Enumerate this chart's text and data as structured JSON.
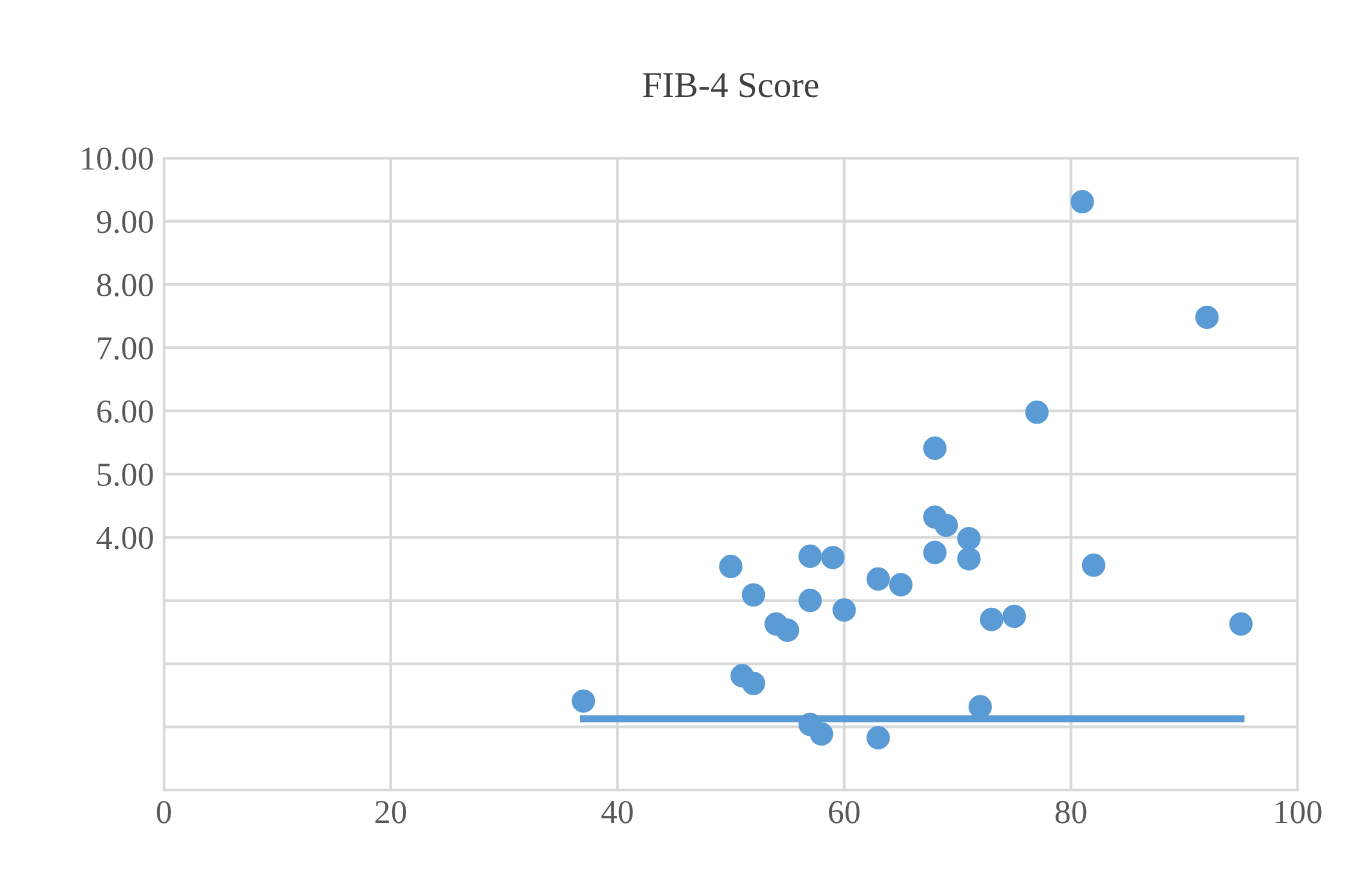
{
  "chart_data": {
    "type": "scatter",
    "title": "FIB-4 Score",
    "series": [
      {
        "color": "#5b9bd5",
        "marker": "circle",
        "x": [
          37,
          50,
          52,
          57,
          59,
          57,
          54,
          55,
          60,
          51,
          52,
          57,
          58,
          63,
          63,
          65,
          68,
          68,
          69,
          71,
          68,
          71,
          72,
          73,
          75,
          77,
          81,
          82,
          92,
          95
        ],
        "values": [
          1.41,
          3.54,
          3.09,
          3.7,
          3.68,
          3.0,
          2.63,
          2.53,
          2.85,
          1.81,
          1.69,
          1.04,
          0.89,
          0.83,
          3.34,
          3.25,
          5.41,
          4.32,
          4.19,
          3.98,
          3.76,
          3.66,
          1.32,
          2.7,
          2.75,
          5.98,
          9.31,
          3.56,
          7.48,
          2.63
        ]
      },
      {
        "type": "line",
        "color": "#5b9bd5",
        "marker": "none",
        "x": [
          37,
          95
        ],
        "values": [
          1.13,
          1.13
        ]
      }
    ],
    "xlim": [
      0,
      100
    ],
    "xticks": [
      0,
      20,
      40,
      60,
      80,
      100
    ],
    "ylim": [
      0,
      10
    ],
    "yticks": [
      {
        "value": 0,
        "label": null
      },
      {
        "value": 1,
        "label": null
      },
      {
        "value": 2,
        "label": null
      },
      {
        "value": 3,
        "label": null
      },
      {
        "value": 4,
        "label": "4.00"
      },
      {
        "value": 5,
        "label": "5.00"
      },
      {
        "value": 6,
        "label": "6.00"
      },
      {
        "value": 7,
        "label": "7.00"
      },
      {
        "value": 8,
        "label": "8.00"
      },
      {
        "value": 9,
        "label": "9.00"
      },
      {
        "value": 10,
        "label": "10.00"
      }
    ],
    "grid": true,
    "legend": false
  }
}
